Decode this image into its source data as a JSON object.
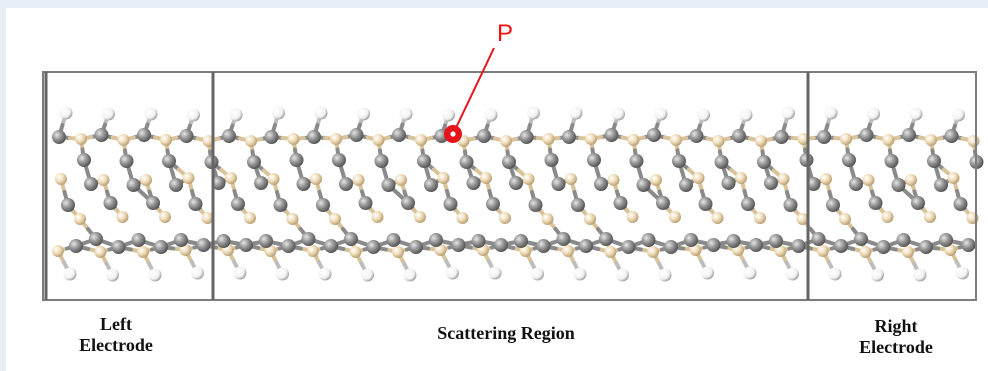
{
  "regions": {
    "left": {
      "line1": "Left",
      "line2": "Electrode"
    },
    "center": {
      "label": "Scattering Region"
    },
    "right": {
      "line1": "Right",
      "line2": "Electrode"
    }
  },
  "marker": {
    "label": "P",
    "color": "#e8141c"
  },
  "colors": {
    "hydrogen": "#ffffff",
    "carbon": "#8e8e8e",
    "silicon": "#e9d3ad",
    "frame": "#808080"
  }
}
